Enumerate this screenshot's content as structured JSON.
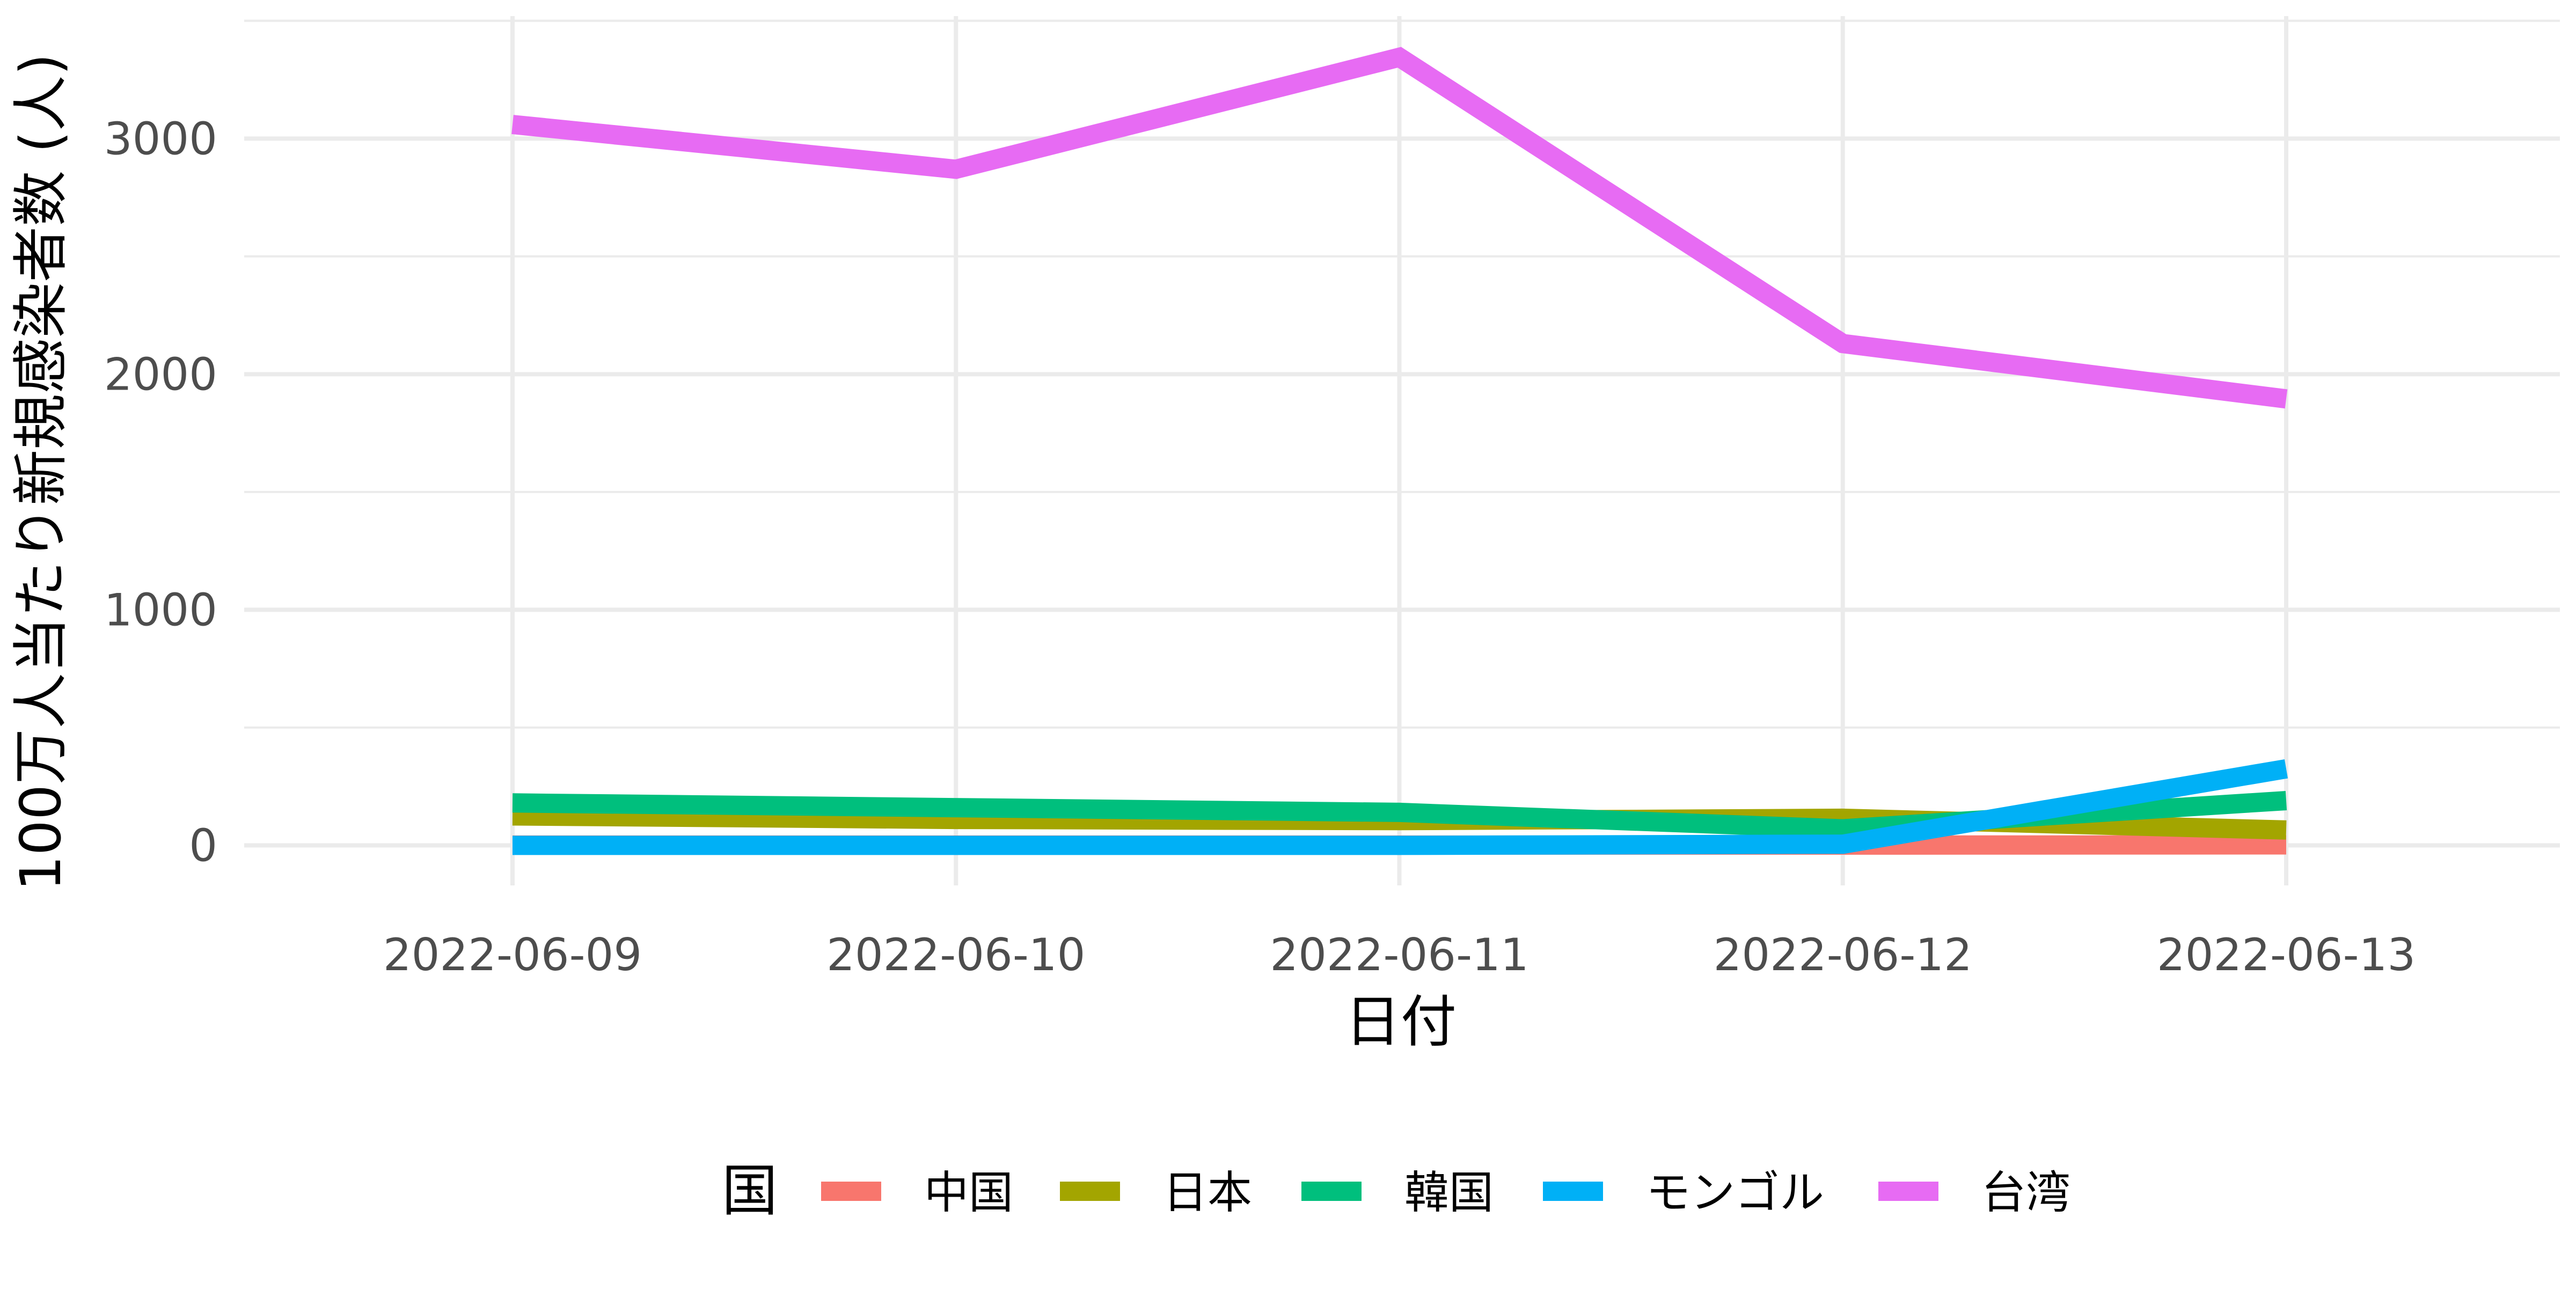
{
  "chart_data": {
    "type": "line",
    "title": "",
    "xlabel": "日付",
    "ylabel": "100万人当たり新規感染者数 (人)",
    "categories": [
      "2022-06-09",
      "2022-06-10",
      "2022-06-11",
      "2022-06-12",
      "2022-06-13"
    ],
    "y_ticks": [
      0,
      1000,
      2000,
      3000
    ],
    "ylim": [
      -170,
      3520
    ],
    "grid": true,
    "legend": {
      "title": "国",
      "position": "bottom"
    },
    "series": [
      {
        "name": "中国",
        "color": "#F8766D",
        "values": [
          1,
          1,
          1,
          1,
          2
        ]
      },
      {
        "name": "日本",
        "color": "#A3A500",
        "values": [
          125,
          110,
          105,
          115,
          65
        ]
      },
      {
        "name": "韓国",
        "color": "#00BF7D",
        "values": [
          180,
          160,
          140,
          70,
          190
        ]
      },
      {
        "name": "モンゴル",
        "color": "#00B0F6",
        "values": [
          0,
          0,
          0,
          5,
          325
        ]
      },
      {
        "name": "台湾",
        "color": "#E76BF3",
        "values": [
          3060,
          2870,
          3345,
          2130,
          1895
        ]
      }
    ]
  }
}
